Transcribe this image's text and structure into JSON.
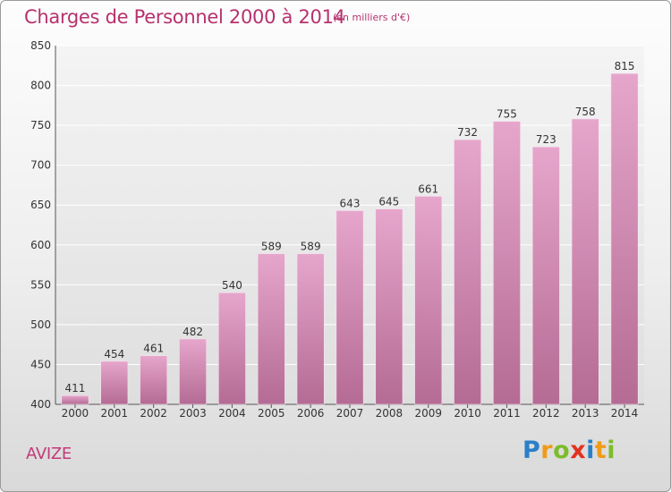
{
  "header": {
    "title": "Charges de Personnel 2000 à 2014",
    "subtitle": "(en milliers d'€)"
  },
  "commune": "AVIZE",
  "logo": {
    "text": "Proxiti",
    "colors": [
      "#2a7fc9",
      "#f09a1a",
      "#7cbc2a",
      "#e2321e",
      "#2a7fc9",
      "#f09a1a",
      "#7cbc2a"
    ]
  },
  "colors": {
    "title": "#b6326e",
    "bar_top": "#e6a6cc",
    "bar_bottom": "#b46b94",
    "grid": "#ffffff"
  },
  "chart_data": {
    "type": "bar",
    "title": "Charges de Personnel 2000 à 2014",
    "subtitle": "(en milliers d'€)",
    "xlabel": "",
    "ylabel": "",
    "categories": [
      "2000",
      "2001",
      "2002",
      "2003",
      "2004",
      "2005",
      "2006",
      "2007",
      "2008",
      "2009",
      "2010",
      "2011",
      "2012",
      "2013",
      "2014"
    ],
    "values": [
      411,
      454,
      461,
      482,
      540,
      589,
      589,
      643,
      645,
      661,
      732,
      755,
      723,
      758,
      815
    ],
    "ylim": [
      400,
      850
    ],
    "yticks": [
      400,
      450,
      500,
      550,
      600,
      650,
      700,
      750,
      800,
      850
    ],
    "grid": true,
    "data_labels": true
  }
}
